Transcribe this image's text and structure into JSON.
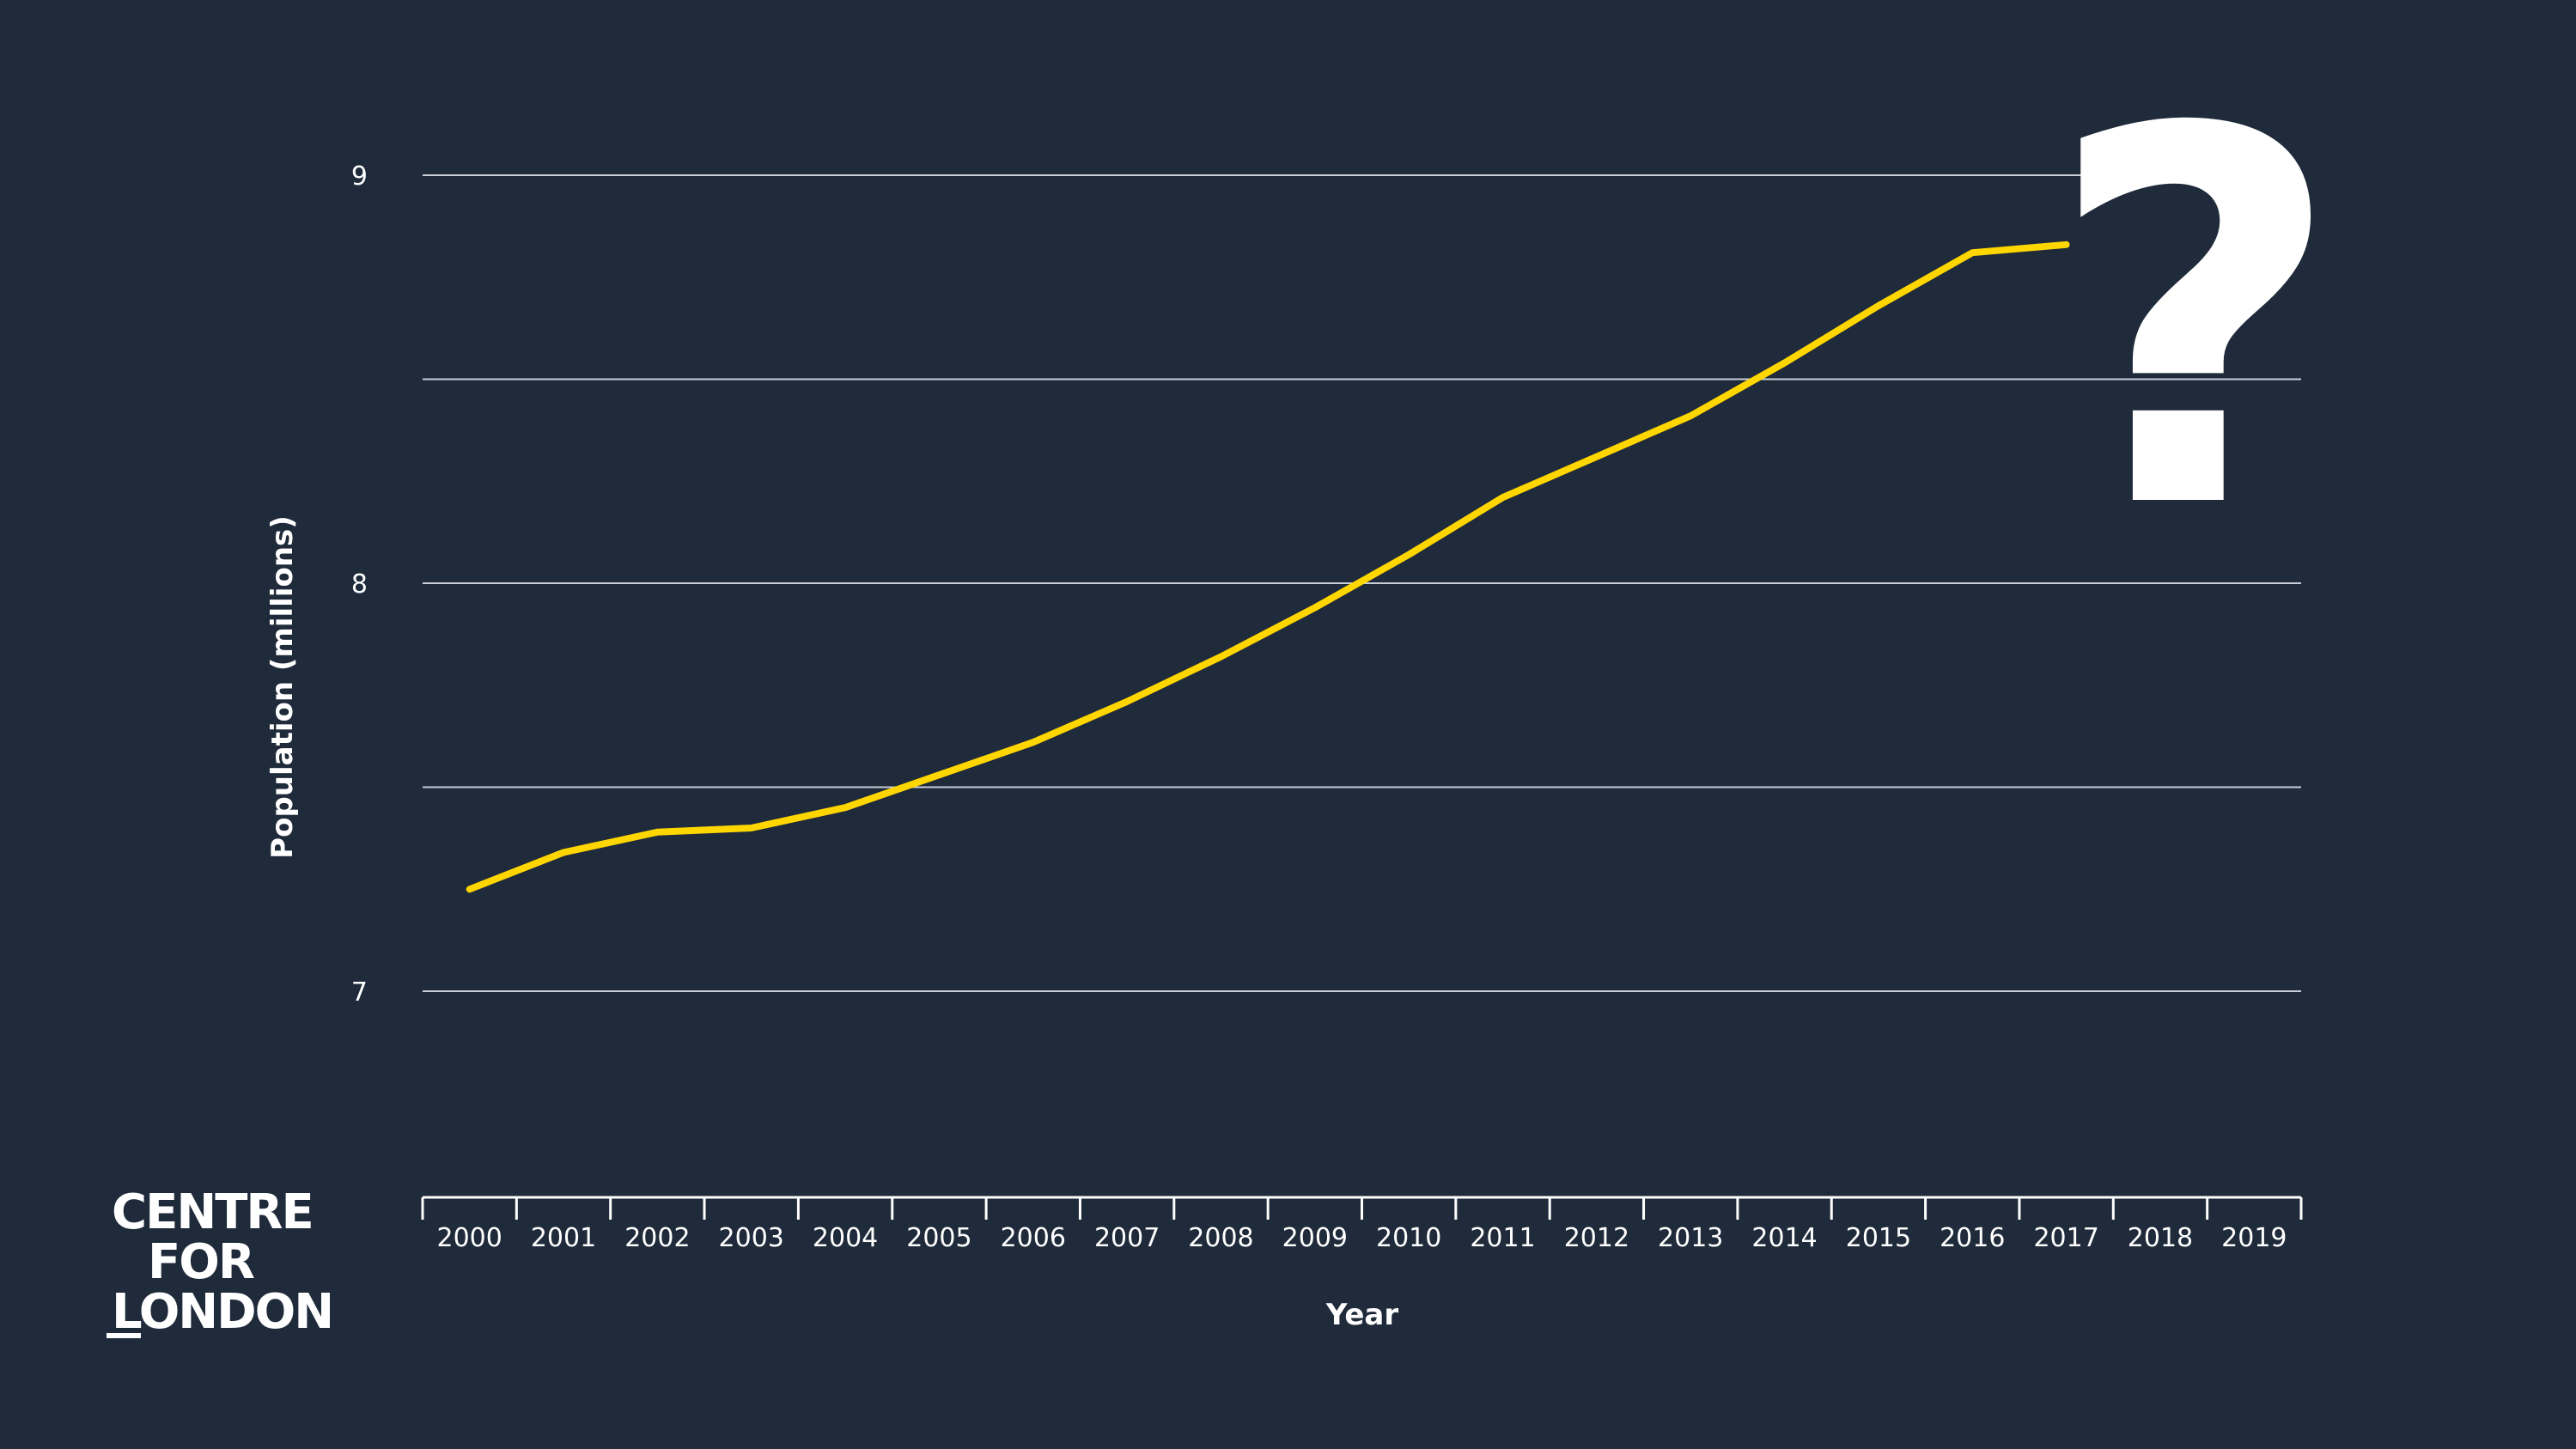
{
  "chart_data": {
    "type": "line",
    "title": "",
    "xlabel": "Year",
    "ylabel": "Population (millions)",
    "x": [
      "2000",
      "2001",
      "2002",
      "2003",
      "2004",
      "2005",
      "2006",
      "2007",
      "2008",
      "2009",
      "2010",
      "2011",
      "2012",
      "2013",
      "2014",
      "2015",
      "2016",
      "2017",
      "2018",
      "2019"
    ],
    "yticks": [
      "9",
      "8",
      "7"
    ],
    "ylim": [
      6.5,
      9.0
    ],
    "grid": true,
    "series": [
      {
        "color": "#ffd600",
        "values": [
          7.25,
          7.34,
          7.39,
          7.4,
          7.45,
          7.53,
          7.61,
          7.71,
          7.82,
          7.94,
          8.07,
          8.21,
          8.31,
          8.41,
          8.54,
          8.68,
          8.81,
          8.83,
          null,
          null
        ]
      }
    ]
  },
  "annotation": {
    "text": "?"
  },
  "logo": {
    "line1": "CENTRE",
    "line2": "FOR",
    "line3": "LONDON"
  },
  "colors": {
    "background": "#1f2a3a",
    "line": "#ffd600",
    "text": "#ffffff",
    "grid": "#c9ced6"
  }
}
